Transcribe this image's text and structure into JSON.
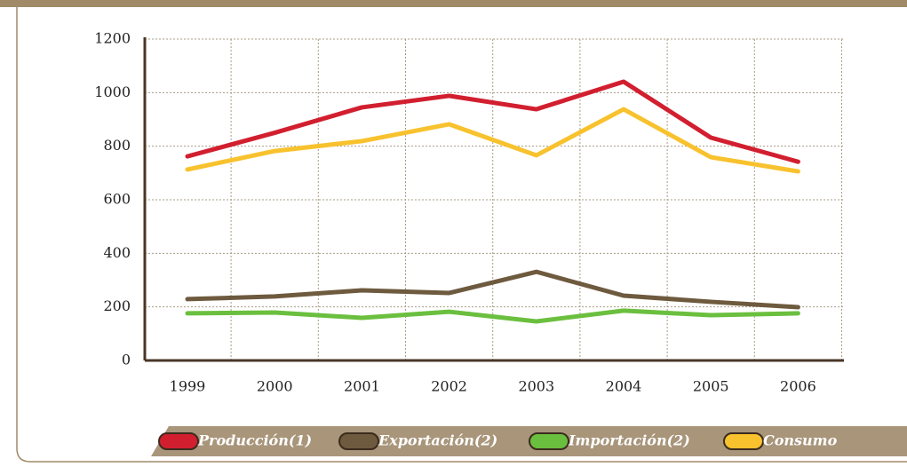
{
  "chart_data": {
    "type": "line",
    "categories": [
      "1999",
      "2000",
      "2001",
      "2002",
      "2003",
      "2004",
      "2005",
      "2006"
    ],
    "series": [
      {
        "name": "Producción(1)",
        "color": "#d21f2f",
        "values": [
          762,
          850,
          945,
          988,
          938,
          1041,
          832,
          742
        ]
      },
      {
        "name": "Exportación(2)",
        "color": "#6e5a3e",
        "values": [
          229,
          239,
          262,
          252,
          331,
          242,
          219,
          199
        ]
      },
      {
        "name": "Importación(2)",
        "color": "#6bbf3f",
        "values": [
          176,
          179,
          159,
          182,
          146,
          186,
          169,
          176
        ]
      },
      {
        "name": "Consumo",
        "color": "#f8c22e",
        "values": [
          713,
          782,
          819,
          882,
          766,
          938,
          759,
          706
        ]
      }
    ],
    "ylim": [
      0,
      1200
    ],
    "yticks": [
      0,
      200,
      400,
      600,
      800,
      1000,
      1200
    ],
    "grid": true
  }
}
